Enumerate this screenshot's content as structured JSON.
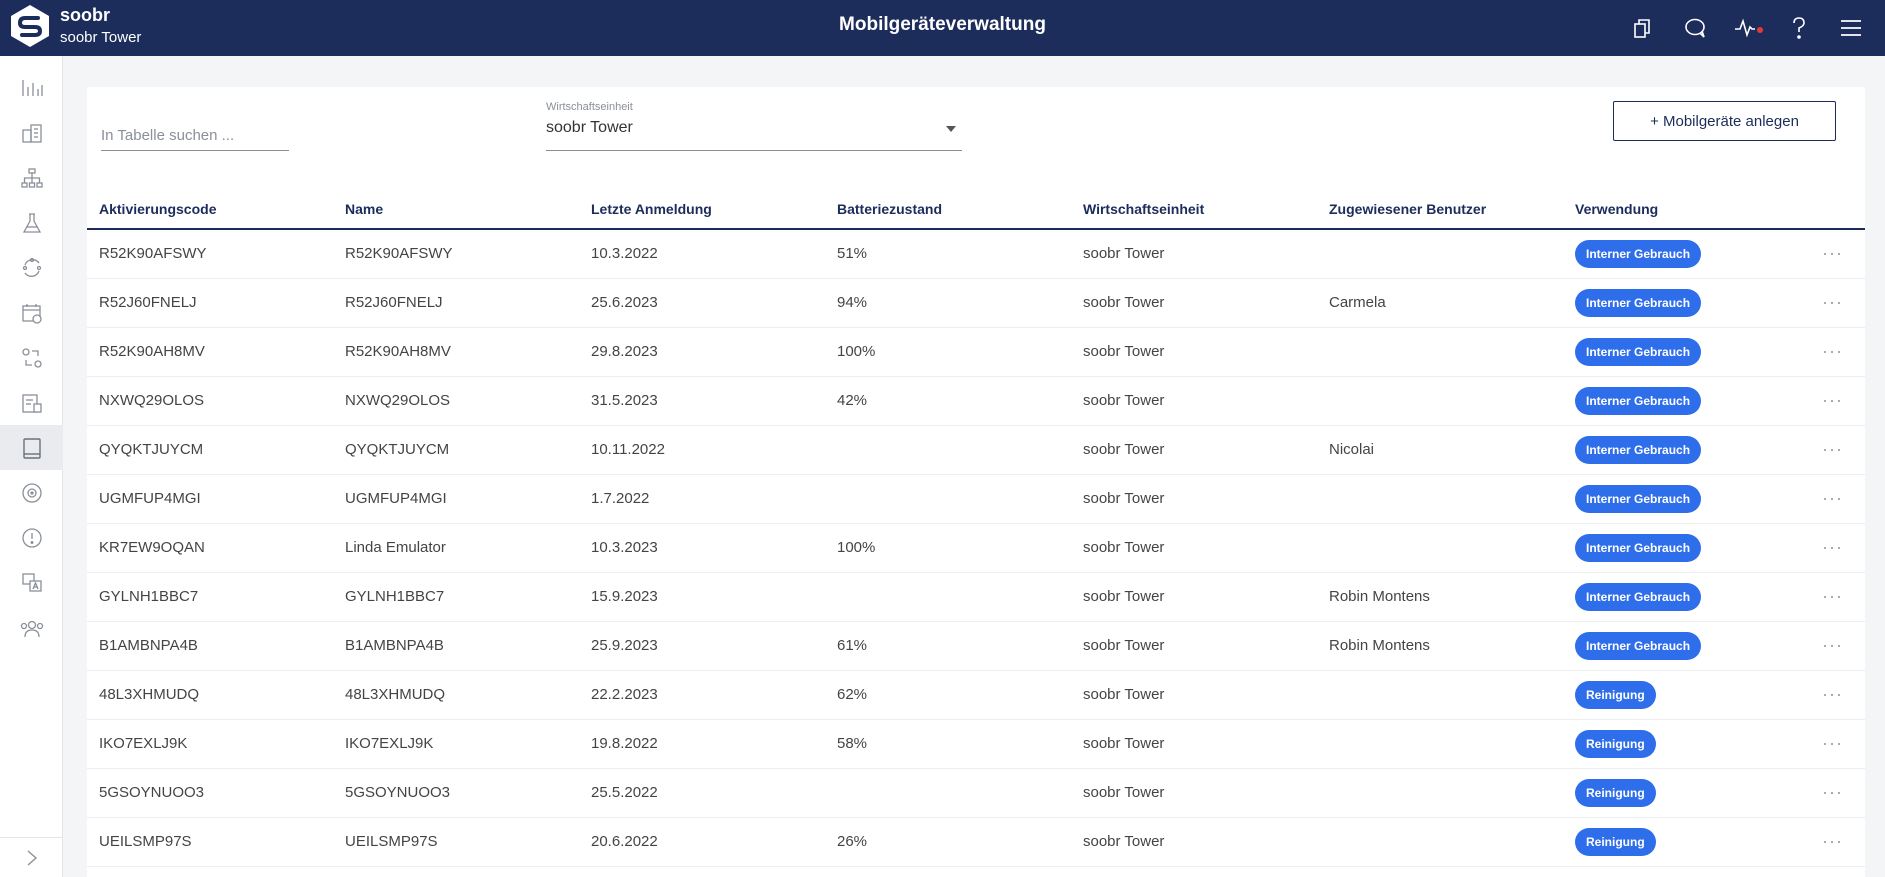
{
  "header": {
    "brand_name": "soobr",
    "brand_sub": "soobr Tower",
    "title": "Mobilgeräteverwaltung",
    "icons": [
      "copy-icon",
      "chat-icon",
      "pulse-icon",
      "help-icon",
      "menu-icon"
    ]
  },
  "sidebar": {
    "icons": [
      "bar-chart-icon",
      "building-icon",
      "hierarchy-icon",
      "flask-icon",
      "cycle-icon",
      "calendar-icon",
      "transfer-icon",
      "report-icon",
      "tablet-icon",
      "target-icon",
      "alert-icon",
      "translate-icon",
      "users-icon"
    ],
    "expand_icon": "chevron-right-icon"
  },
  "toolbar": {
    "search_placeholder": "In Tabelle suchen ...",
    "select_label": "Wirtschaftseinheit",
    "select_value": "soobr Tower",
    "add_button": "+ Mobilgeräte anlegen"
  },
  "table": {
    "columns": [
      "Aktivierungscode",
      "Name",
      "Letzte Anmeldung",
      "Batteriezustand",
      "Wirtschaftseinheit",
      "Zugewiesener Benutzer",
      "Verwendung"
    ],
    "more_label": "···",
    "rows": [
      {
        "code": "R52K90AFSWY",
        "name": "R52K90AFSWY",
        "login": "10.3.2022",
        "battery": "51%",
        "unit": "soobr Tower",
        "user": "",
        "usage": "Interner Gebrauch"
      },
      {
        "code": "R52J60FNELJ",
        "name": "R52J60FNELJ",
        "login": "25.6.2023",
        "battery": "94%",
        "unit": "soobr Tower",
        "user": "Carmela",
        "usage": "Interner Gebrauch"
      },
      {
        "code": "R52K90AH8MV",
        "name": "R52K90AH8MV",
        "login": "29.8.2023",
        "battery": "100%",
        "unit": "soobr Tower",
        "user": "",
        "usage": "Interner Gebrauch"
      },
      {
        "code": "NXWQ29OLOS",
        "name": "NXWQ29OLOS",
        "login": "31.5.2023",
        "battery": "42%",
        "unit": "soobr Tower",
        "user": "",
        "usage": "Interner Gebrauch"
      },
      {
        "code": "QYQKTJUYCM",
        "name": "QYQKTJUYCM",
        "login": "10.11.2022",
        "battery": "",
        "unit": "soobr Tower",
        "user": "Nicolai",
        "usage": "Interner Gebrauch"
      },
      {
        "code": "UGMFUP4MGI",
        "name": "UGMFUP4MGI",
        "login": "1.7.2022",
        "battery": "",
        "unit": "soobr Tower",
        "user": "",
        "usage": "Interner Gebrauch"
      },
      {
        "code": "KR7EW9OQAN",
        "name": "Linda Emulator",
        "login": "10.3.2023",
        "battery": "100%",
        "unit": "soobr Tower",
        "user": "",
        "usage": "Interner Gebrauch"
      },
      {
        "code": "GYLNH1BBC7",
        "name": "GYLNH1BBC7",
        "login": "15.9.2023",
        "battery": "",
        "unit": "soobr Tower",
        "user": "Robin Montens",
        "usage": "Interner Gebrauch"
      },
      {
        "code": "B1AMBNPA4B",
        "name": "B1AMBNPA4B",
        "login": "25.9.2023",
        "battery": "61%",
        "unit": "soobr Tower",
        "user": "Robin Montens",
        "usage": "Interner Gebrauch"
      },
      {
        "code": "48L3XHMUDQ",
        "name": "48L3XHMUDQ",
        "login": "22.2.2023",
        "battery": "62%",
        "unit": "soobr Tower",
        "user": "",
        "usage": "Reinigung"
      },
      {
        "code": "IKO7EXLJ9K",
        "name": "IKO7EXLJ9K",
        "login": "19.8.2022",
        "battery": "58%",
        "unit": "soobr Tower",
        "user": "",
        "usage": "Reinigung"
      },
      {
        "code": "5GSOYNUOO3",
        "name": "5GSOYNUOO3",
        "login": "25.5.2022",
        "battery": "",
        "unit": "soobr Tower",
        "user": "",
        "usage": "Reinigung"
      },
      {
        "code": "UEILSMP97S",
        "name": "UEILSMP97S",
        "login": "20.6.2022",
        "battery": "26%",
        "unit": "soobr Tower",
        "user": "",
        "usage": "Reinigung"
      }
    ]
  }
}
